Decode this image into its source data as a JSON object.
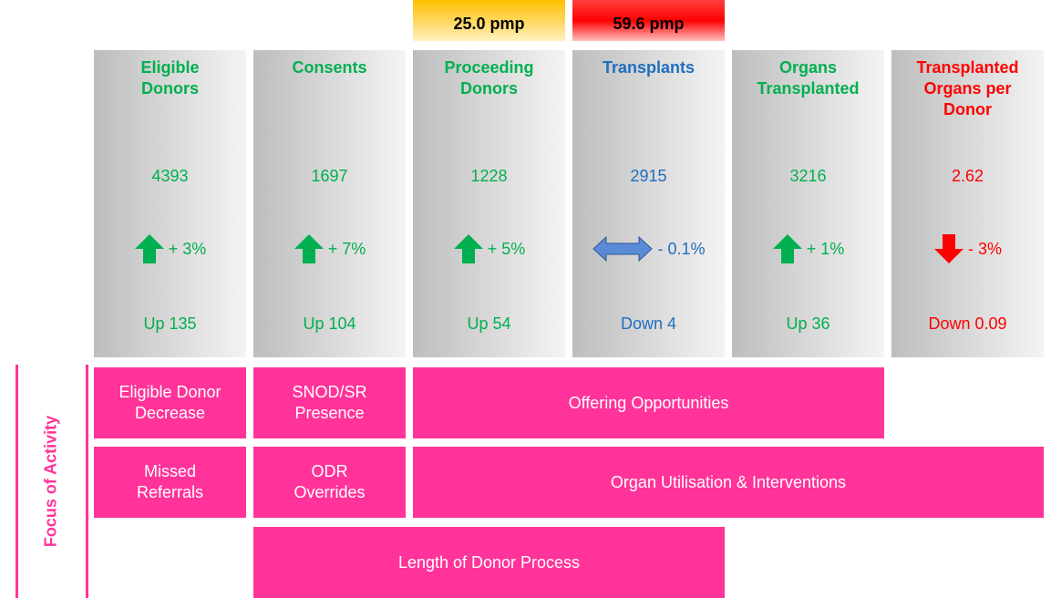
{
  "badges": [
    "25.0 pmp",
    "59.6 pmp"
  ],
  "columns": [
    {
      "title": "Eligible\nDonors",
      "value": "4393",
      "trend": "up",
      "change": "+ 3%",
      "delta": "Up 135",
      "color": "#00b050"
    },
    {
      "title": "Consents",
      "value": "1697",
      "trend": "up",
      "change": "+ 7%",
      "delta": "Up 104",
      "color": "#00b050"
    },
    {
      "title": "Proceeding\nDonors",
      "value": "1228",
      "trend": "up",
      "change": "+ 5%",
      "delta": "Up 54",
      "color": "#00b050"
    },
    {
      "title": "Transplants",
      "value": "2915",
      "trend": "flat",
      "change": "- 0.1%",
      "delta": "Down 4",
      "color": "#1f6fc0"
    },
    {
      "title": "Organs\nTransplanted",
      "value": "3216",
      "trend": "up",
      "change": "+ 1%",
      "delta": "Up 36",
      "color": "#00b050"
    },
    {
      "title": "Transplanted\nOrgans per\nDonor",
      "value": "2.62",
      "trend": "down",
      "change": "- 3%",
      "delta": "Down 0.09",
      "color": "#ff0000"
    }
  ],
  "focus_label": "Focus of Activity",
  "activities": [
    "Eligible Donor\nDecrease",
    "SNOD/SR\nPresence",
    "Offering Opportunities",
    "Missed\nReferrals",
    "ODR\nOverrides",
    "Organ Utilisation & Interventions",
    "Length of Donor Process"
  ]
}
